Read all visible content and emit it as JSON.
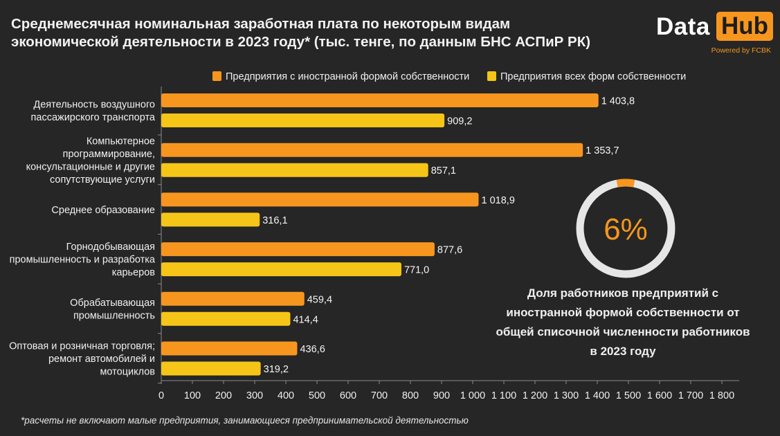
{
  "title": {
    "line1": "Среднемесячная номинальная заработная плата по некоторым видам",
    "line2": "экономической деятельности в 2023 году* (тыс. тенге, по данным БНС АСПиР РК)"
  },
  "logo": {
    "word1": "Data",
    "word2": "Hub",
    "tagline": "Powered by FCBK"
  },
  "footnote": "*расчеты не включают малые предприятия, занимающиеся предпринимательской деятельностью",
  "colors": {
    "background": "#262626",
    "series_foreign": "#f7961f",
    "series_all": "#f5c518",
    "donut_track": "#e6e6e6",
    "donut_value": "#f7961f"
  },
  "chart_data": {
    "type": "bar",
    "orientation": "horizontal",
    "categories": [
      [
        "Деятельность воздушного",
        "пассажирского транспорта"
      ],
      [
        "Компьютерное",
        "программирование,",
        "консультационные и другие",
        "сопутствующие услуги"
      ],
      [
        "Среднее образование"
      ],
      [
        "Горнодобывающая",
        "промышленность и разработка",
        "карьеров"
      ],
      [
        "Обрабатывающая",
        "промышленность"
      ],
      [
        "Оптовая и розничная торговля;",
        "ремонт автомобилей и",
        "мотоциклов"
      ]
    ],
    "series": [
      {
        "name": "Предприятия с иностранной формой собственности",
        "values": [
          1403.8,
          1353.7,
          1018.9,
          877.6,
          459.4,
          436.6
        ],
        "labels": [
          "1 403,8",
          "1 353,7",
          "1 018,9",
          "877,6",
          "459,4",
          "436,6"
        ]
      },
      {
        "name": "Предприятия всех форм собственности",
        "values": [
          909.2,
          857.1,
          316.1,
          771.0,
          414.4,
          319.2
        ],
        "labels": [
          "909,2",
          "857,1",
          "316,1",
          "771,0",
          "414,4",
          "319,2"
        ]
      }
    ],
    "xlim": [
      0,
      1800
    ],
    "xticks": [
      0,
      100,
      200,
      300,
      400,
      500,
      600,
      700,
      800,
      900,
      1000,
      1100,
      1200,
      1300,
      1400,
      1500,
      1600,
      1700,
      1800
    ],
    "xtick_labels": [
      "0",
      "100",
      "200",
      "300",
      "400",
      "500",
      "600",
      "700",
      "800",
      "900",
      "1 000",
      "1 100",
      "1 200",
      "1 300",
      "1 400",
      "1 500",
      "1 600",
      "1 700",
      "1 800"
    ],
    "legend_position": "top",
    "grid": false
  },
  "donut": {
    "value": 6,
    "label": "6%",
    "caption": [
      "Доля работников предприятий с",
      "иностранной формой собственности от",
      "общей списочной численности работников",
      "в 2023 году"
    ]
  }
}
